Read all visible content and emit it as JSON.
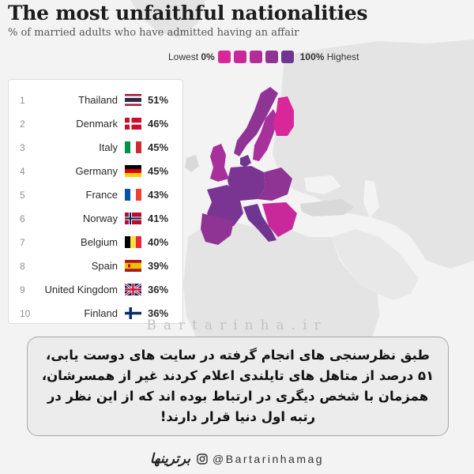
{
  "header": {
    "title": "The most unfaithful nationalities",
    "subtitle": "% of married adults who have admitted having an affair"
  },
  "legend": {
    "low_label": "Lowest",
    "low_value": "0%",
    "high_value": "100%",
    "high_label": "Highest",
    "swatch_colors": [
      "#d9279a",
      "#c8289a",
      "#b22d9a",
      "#8f3394",
      "#6f3591"
    ]
  },
  "ranking": [
    {
      "rank": "1",
      "country": "Thailand",
      "percent": "51%",
      "flag": "thailand-flag"
    },
    {
      "rank": "2",
      "country": "Denmark",
      "percent": "46%",
      "flag": "denmark-flag"
    },
    {
      "rank": "3",
      "country": "Italy",
      "percent": "45%",
      "flag": "italy-flag"
    },
    {
      "rank": "4",
      "country": "Germany",
      "percent": "45%",
      "flag": "germany-flag"
    },
    {
      "rank": "5",
      "country": "France",
      "percent": "43%",
      "flag": "france-flag"
    },
    {
      "rank": "6",
      "country": "Norway",
      "percent": "41%",
      "flag": "norway-flag"
    },
    {
      "rank": "7",
      "country": "Belgium",
      "percent": "40%",
      "flag": "belgium-flag"
    },
    {
      "rank": "8",
      "country": "Spain",
      "percent": "39%",
      "flag": "spain-flag"
    },
    {
      "rank": "9",
      "country": "United Kingdom",
      "percent": "36%",
      "flag": "uk-flag"
    },
    {
      "rank": "10",
      "country": "Finland",
      "percent": "36%",
      "flag": "finland-flag"
    }
  ],
  "map_colors": {
    "land": "#e4e4e4",
    "ocean": "#f3f3f3",
    "highlight_dark": "#6f3591",
    "highlight_mid": "#8f3394",
    "highlight_light": "#c8289a"
  },
  "watermark": "Bartarinha.ir",
  "caption": "طبق نظرسنجی های انجام گرفته در سایت های دوست یابی، ۵۱ درصد از متاهل های تایلندی اعلام کردند غیر از همسرشان، همزمان با شخص دیگری در ارتباط بوده اند که از این نظر در رتبه اول دنیا قرار دارند!",
  "footer": {
    "logo_text": "برترینها",
    "handle": "@Bartarinhamag"
  }
}
